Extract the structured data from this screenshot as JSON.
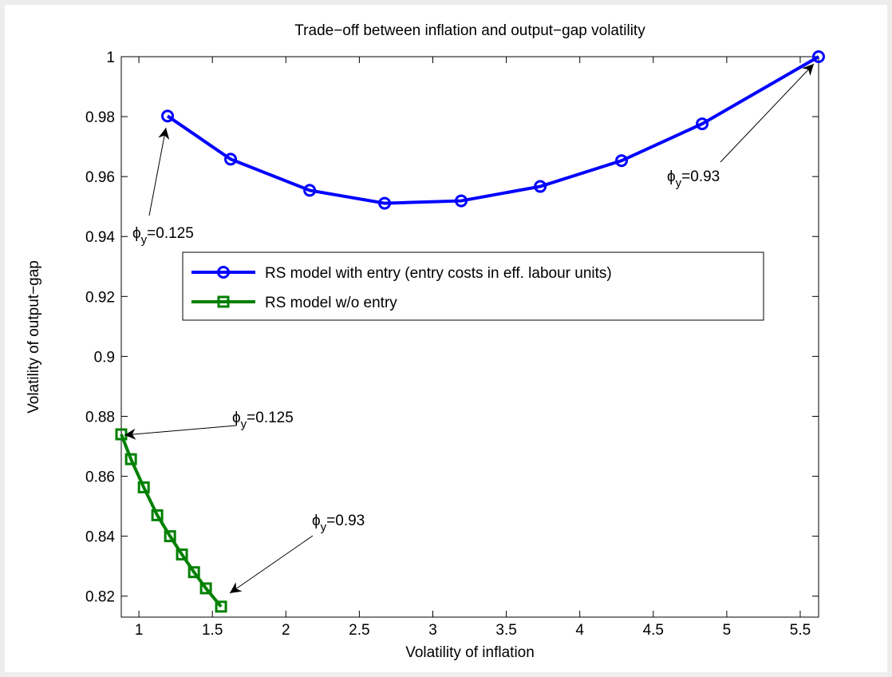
{
  "chart_data": {
    "type": "line",
    "title": "Trade−off between inflation and output−gap volatility",
    "x_label": "Volatility of inflation",
    "y_label": "Volatility of output−gap",
    "xlim": [
      0.88,
      5.625
    ],
    "ylim": [
      0.813,
      1.0
    ],
    "xticks": [
      1,
      1.5,
      2,
      2.5,
      3,
      3.5,
      4,
      4.5,
      5,
      5.5
    ],
    "yticks": [
      0.82,
      0.84,
      0.86,
      0.88,
      0.9,
      0.92,
      0.94,
      0.96,
      0.98,
      1
    ],
    "legend": "upper left",
    "series": [
      {
        "name": "RS model with entry (entry costs in eff. labour units)",
        "color": "#0000ff",
        "marker": "circle",
        "x": [
          1.195,
          1.624,
          2.162,
          2.672,
          3.193,
          3.731,
          4.284,
          4.833,
          5.625
        ],
        "values": [
          0.9802,
          0.9658,
          0.9554,
          0.9511,
          0.9519,
          0.9567,
          0.9653,
          0.9776,
          1.0
        ]
      },
      {
        "name": "RS model w/o entry",
        "color": "#008000",
        "marker": "square",
        "x": [
          0.88,
          0.946,
          1.033,
          1.125,
          1.212,
          1.293,
          1.375,
          1.456,
          1.559
        ],
        "values": [
          0.874,
          0.8657,
          0.8563,
          0.847,
          0.84,
          0.8339,
          0.828,
          0.8226,
          0.8165
        ]
      }
    ],
    "annotations": [
      {
        "symbol": "ϕ",
        "subscript": "y",
        "text": "=0.125"
      },
      {
        "symbol": "ϕ",
        "subscript": "y",
        "text": "=0.93"
      },
      {
        "symbol": "ϕ",
        "subscript": "y",
        "text": "=0.125"
      },
      {
        "symbol": "ϕ",
        "subscript": "y",
        "text": "=0.93"
      }
    ]
  }
}
